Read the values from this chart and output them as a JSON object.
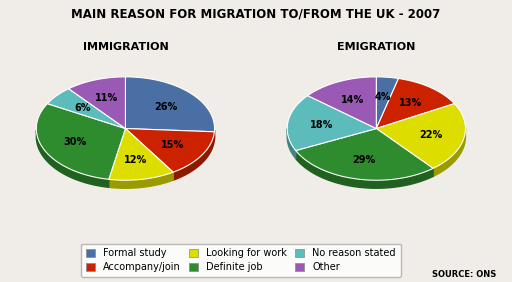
{
  "title": "MAIN REASON FOR MIGRATION TO/FROM THE UK - 2007",
  "left_title": "IMMIGRATION",
  "right_title": "EMIGRATION",
  "source": "SOURCE: ONS",
  "immigration": {
    "values": [
      26,
      15,
      12,
      30,
      6,
      11
    ],
    "colors": [
      "#4a6fa5",
      "#cc2200",
      "#dddd00",
      "#2e8b2e",
      "#5bbcbb",
      "#9b59b6"
    ],
    "pct_labels": [
      "26%",
      "15%",
      "12%",
      "30%",
      "6%",
      "11%"
    ],
    "startangle": 90
  },
  "emigration": {
    "values": [
      4,
      13,
      22,
      29,
      18,
      14
    ],
    "colors": [
      "#4a6fa5",
      "#cc2200",
      "#dddd00",
      "#2e8b2e",
      "#5bbcbb",
      "#9b59b6"
    ],
    "pct_labels": [
      "4%",
      "13%",
      "22%",
      "29%",
      "18%",
      "14%"
    ],
    "startangle": 90
  },
  "legend_labels": [
    "Formal study",
    "Accompany/join",
    "Looking for work",
    "Definite job",
    "No reason stated",
    "Other"
  ],
  "legend_colors": [
    "#4a6fa5",
    "#cc2200",
    "#dddd00",
    "#2e8b2e",
    "#5bbcbb",
    "#9b59b6"
  ],
  "background_color": "#f0ede8",
  "title_fontsize": 8.5,
  "subtitle_fontsize": 8,
  "pct_fontsize": 7,
  "legend_fontsize": 7
}
